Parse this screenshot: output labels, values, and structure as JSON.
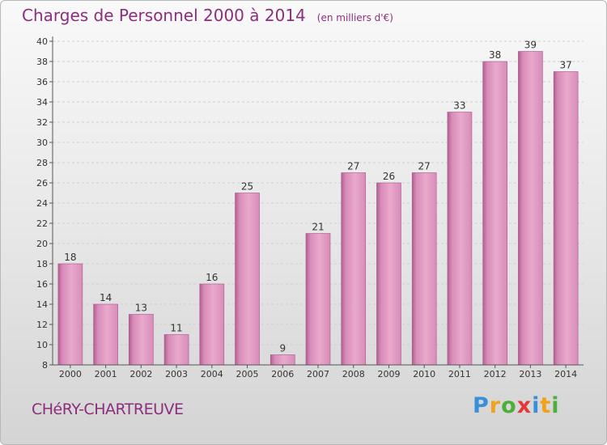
{
  "title": "Charges de Personnel 2000 à 2014",
  "subtitle": "(en milliers d'€)",
  "commune": "CHéRY-CHARTREUVE",
  "logo": {
    "letters": [
      {
        "char": "P",
        "color": "#3a8fd6"
      },
      {
        "char": "r",
        "color": "#f0a21b"
      },
      {
        "char": "o",
        "color": "#4cae3c"
      },
      {
        "char": "x",
        "color": "#e23a3a"
      },
      {
        "char": "i",
        "color": "#3a8fd6"
      },
      {
        "char": "t",
        "color": "#f0a21b"
      },
      {
        "char": "i",
        "color": "#4cae3c"
      }
    ]
  },
  "colors": {
    "bar": "#d88cb9",
    "bar_highlight": "#e9a9cc",
    "bar_shadow": "#b05f90",
    "text": "#333333",
    "accent": "#8c2d7e",
    "grid": "#cfcfcf"
  },
  "chart_data": {
    "type": "bar",
    "title": "Charges de Personnel 2000 à 2014",
    "subtitle": "(en milliers d'€)",
    "categories": [
      "2000",
      "2001",
      "2002",
      "2003",
      "2004",
      "2005",
      "2006",
      "2007",
      "2008",
      "2009",
      "2010",
      "2011",
      "2012",
      "2013",
      "2014"
    ],
    "values": [
      18,
      14,
      13,
      11,
      16,
      25,
      9,
      21,
      27,
      26,
      27,
      33,
      38,
      39,
      37
    ],
    "ylim": [
      8,
      40
    ],
    "yticks": [
      8,
      10,
      12,
      14,
      16,
      18,
      20,
      22,
      24,
      26,
      28,
      30,
      32,
      34,
      36,
      38,
      40
    ],
    "grid": true,
    "data_labels": true
  }
}
